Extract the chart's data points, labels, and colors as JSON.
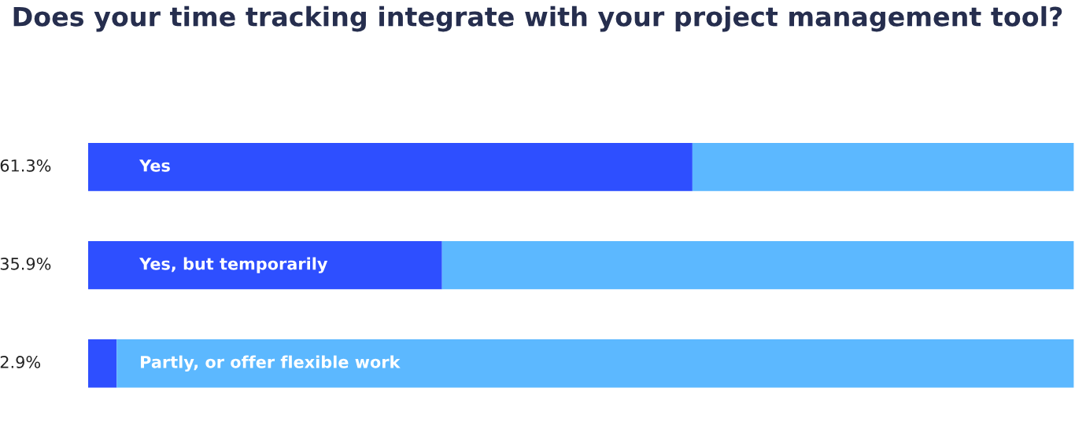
{
  "chart_data": {
    "type": "bar",
    "orientation": "horizontal",
    "stacked": true,
    "xlim": [
      0,
      100
    ],
    "tick_labels": false,
    "title": "Does your time tracking integrate with your project management tool?",
    "categories": [
      "Yes",
      "Yes, but temporarily",
      "Partly, or offer flexible work"
    ],
    "series": [
      {
        "color": "#2e4fff",
        "values": [
          61.3,
          35.9,
          2.9
        ],
        "value_labels": [
          "61.3%",
          "35.9%",
          "2.9%"
        ]
      },
      {
        "color": "#5cb8ff",
        "values": [
          38.7,
          64.1,
          97.1
        ]
      }
    ],
    "legend": false
  }
}
